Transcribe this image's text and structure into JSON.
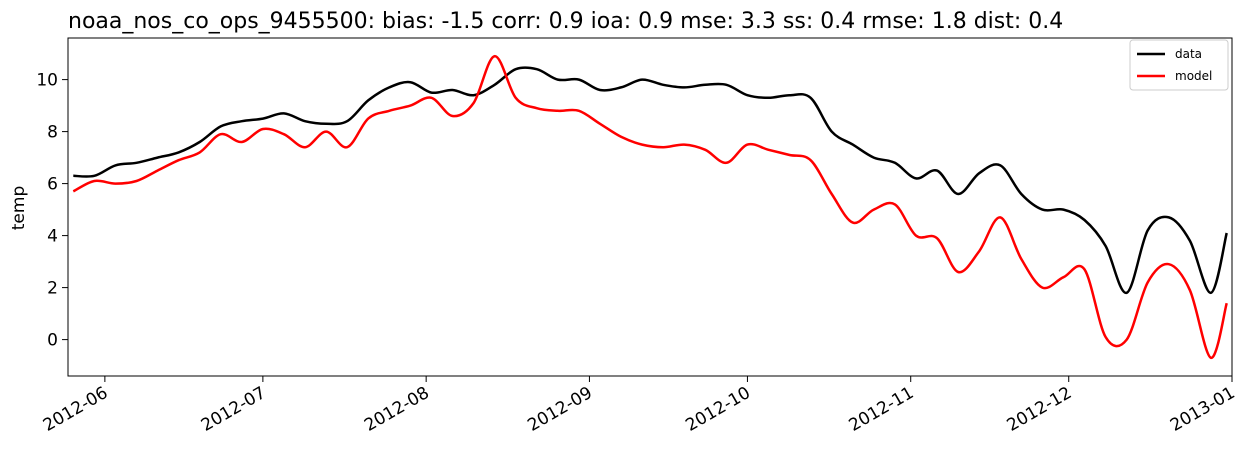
{
  "chart_data": {
    "type": "line",
    "title": "noaa_nos_co_ops_9455500: bias: -1.5  corr: 0.9  ioa: 0.9  mse: 3.3  ss: 0.4  rmse: 1.8  dist: 0.4",
    "xlabel": "",
    "ylabel": "temp",
    "xlim": [
      "2012-05-25",
      "2013-01-01"
    ],
    "ylim": [
      -1.4,
      11.6
    ],
    "x_ticks": [
      "2012-06",
      "2012-07",
      "2012-08",
      "2012-09",
      "2012-10",
      "2012-11",
      "2012-12",
      "2013-01"
    ],
    "y_ticks": [
      0,
      2,
      4,
      6,
      8,
      10
    ],
    "grid": false,
    "legend_position": "top-right",
    "x": [
      "2012-05-26",
      "2012-05-30",
      "2012-06-03",
      "2012-06-07",
      "2012-06-11",
      "2012-06-15",
      "2012-06-19",
      "2012-06-23",
      "2012-06-27",
      "2012-07-01",
      "2012-07-05",
      "2012-07-09",
      "2012-07-13",
      "2012-07-17",
      "2012-07-21",
      "2012-07-25",
      "2012-07-29",
      "2012-08-02",
      "2012-08-06",
      "2012-08-10",
      "2012-08-14",
      "2012-08-18",
      "2012-08-22",
      "2012-08-26",
      "2012-08-30",
      "2012-09-03",
      "2012-09-07",
      "2012-09-11",
      "2012-09-15",
      "2012-09-19",
      "2012-09-23",
      "2012-09-27",
      "2012-10-01",
      "2012-10-05",
      "2012-10-09",
      "2012-10-13",
      "2012-10-17",
      "2012-10-21",
      "2012-10-25",
      "2012-10-29",
      "2012-11-02",
      "2012-11-06",
      "2012-11-10",
      "2012-11-14",
      "2012-11-18",
      "2012-11-22",
      "2012-11-26",
      "2012-11-30",
      "2012-12-04",
      "2012-12-08",
      "2012-12-12",
      "2012-12-16",
      "2012-12-20",
      "2012-12-24",
      "2012-12-28",
      "2012-12-31"
    ],
    "series": [
      {
        "name": "data",
        "color": "#000000",
        "values": [
          6.3,
          6.3,
          6.7,
          6.8,
          7.0,
          7.2,
          7.6,
          8.2,
          8.4,
          8.5,
          8.7,
          8.4,
          8.3,
          8.4,
          9.2,
          9.7,
          9.9,
          9.5,
          9.6,
          9.4,
          9.8,
          10.4,
          10.4,
          10.0,
          10.0,
          9.6,
          9.7,
          10.0,
          9.8,
          9.7,
          9.8,
          9.8,
          9.4,
          9.3,
          9.4,
          9.3,
          8.0,
          7.5,
          7.0,
          6.8,
          6.2,
          6.5,
          5.6,
          6.4,
          6.7,
          5.6,
          5.0,
          5.0,
          4.6,
          3.6,
          1.8,
          4.2,
          4.7,
          3.8,
          1.8,
          4.1
        ]
      },
      {
        "name": "model",
        "color": "#ff0000",
        "values": [
          5.7,
          6.1,
          6.0,
          6.1,
          6.5,
          6.9,
          7.2,
          7.9,
          7.6,
          8.1,
          7.9,
          7.4,
          8.0,
          7.4,
          8.5,
          8.8,
          9.0,
          9.3,
          8.6,
          9.1,
          10.9,
          9.3,
          8.9,
          8.8,
          8.8,
          8.3,
          7.8,
          7.5,
          7.4,
          7.5,
          7.3,
          6.8,
          7.5,
          7.3,
          7.1,
          6.9,
          5.6,
          4.5,
          5.0,
          5.2,
          4.0,
          3.9,
          2.6,
          3.4,
          4.7,
          3.1,
          2.0,
          2.4,
          2.7,
          0.1,
          0.0,
          2.2,
          2.9,
          1.9,
          -0.7,
          1.4
        ]
      }
    ]
  }
}
